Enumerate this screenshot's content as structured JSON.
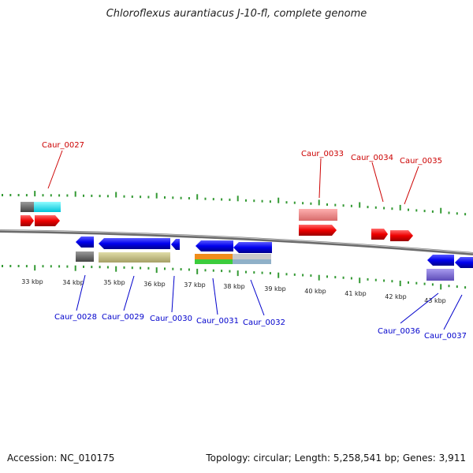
{
  "title": "Chloroflexus aurantiacus J-10-fl, complete genome",
  "footer": {
    "accession": "Accession: NC_010175",
    "summary": "Topology: circular; Length: 5,258,541 bp; Genes: 3,911"
  },
  "colors": {
    "forward_label": "#cc0000",
    "reverse_label": "#0000cc",
    "tick": "#339933",
    "backbone": "#888888"
  },
  "scale_labels": [
    "33 kbp",
    "34 kbp",
    "35 kbp",
    "36 kbp",
    "37 kbp",
    "38 kbp",
    "39 kbp",
    "40 kbp",
    "41 kbp",
    "42 kbp",
    "43 kbp"
  ],
  "forward_genes": [
    "Caur_0027",
    "Caur_0033",
    "Caur_0034",
    "Caur_0035"
  ],
  "reverse_genes": [
    "Caur_0028",
    "Caur_0029",
    "Caur_0030",
    "Caur_0031",
    "Caur_0032",
    "Caur_0036",
    "Caur_0037"
  ]
}
